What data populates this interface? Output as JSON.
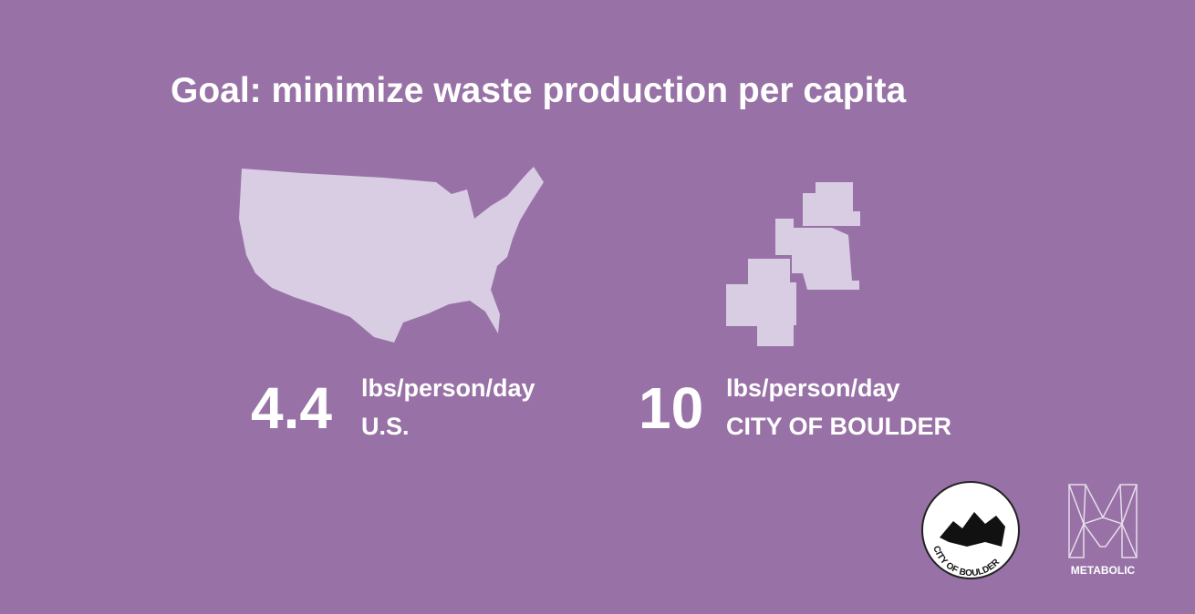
{
  "header": {
    "title": "Goal: minimize waste production per capita"
  },
  "stats": [
    {
      "value": 4.4,
      "unit": "lbs/person/day",
      "place": "U.S."
    },
    {
      "value": 10,
      "unit": "lbs/person/day",
      "place": "CITY OF BOULDER"
    }
  ],
  "logos": {
    "boulder": "CITY OF BOULDER",
    "metabolic": "METABOLIC"
  }
}
